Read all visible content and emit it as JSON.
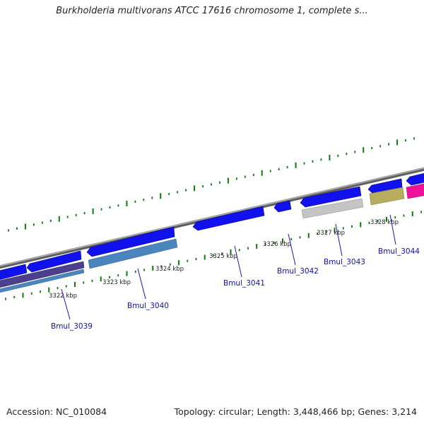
{
  "header": {
    "title": "Burkholderia multivorans ATCC 17616 chromosome 1, complete s..."
  },
  "footer": {
    "accession": "Accession: NC_010084",
    "topology": "Topology: circular; Length: 3,448,466 bp; Genes: 3,214"
  },
  "colors": {
    "backbone": "#8a8a8a",
    "gene_blue": "#1111ee",
    "gene_steel": "#4a86bd",
    "gene_purple": "#4b3f8e",
    "gene_gray": "#bdbdbd",
    "gene_olive": "#b8ad5e",
    "gene_magenta": "#ee1199",
    "tick_green": "#117711",
    "label_blue": "#1010b0"
  },
  "ruler": [
    {
      "label": "3322 kbp"
    },
    {
      "label": "3323 kbp"
    },
    {
      "label": "3324 kbp"
    },
    {
      "label": "3325 kbp"
    },
    {
      "label": "3326 kbp"
    },
    {
      "label": "3327 kbp"
    },
    {
      "label": "3328 kbp"
    }
  ],
  "genes": [
    {
      "label": "Bmul_3039"
    },
    {
      "label": "Bmul_3040"
    },
    {
      "label": "Bmul_3041"
    },
    {
      "label": "Bmul_3042"
    },
    {
      "label": "Bmul_3043"
    },
    {
      "label": "Bmul_3044"
    }
  ]
}
